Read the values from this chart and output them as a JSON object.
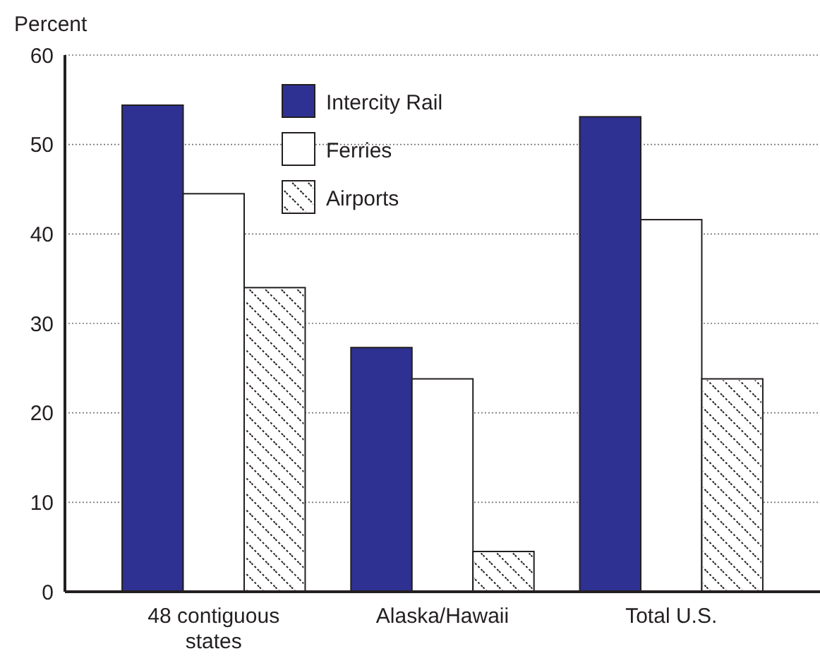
{
  "chart_data": {
    "type": "bar",
    "ylabel": "Percent",
    "categories": [
      "48 contiguous states",
      "Alaska/Hawaii",
      "Total U.S."
    ],
    "series": [
      {
        "name": "Intercity Rail",
        "color": "#2e3192",
        "values": [
          54.4,
          27.3,
          53.1
        ]
      },
      {
        "name": "Ferries",
        "color": "#ffffff",
        "values": [
          44.5,
          23.8,
          41.6
        ]
      },
      {
        "name": "Airports",
        "color": "#ffffff",
        "values": [
          34.0,
          4.5,
          23.8
        ]
      }
    ],
    "ylim": [
      0,
      60
    ],
    "yticks": [
      0,
      10,
      20,
      30,
      40,
      50,
      60
    ],
    "grid": "y",
    "legend": "top"
  }
}
